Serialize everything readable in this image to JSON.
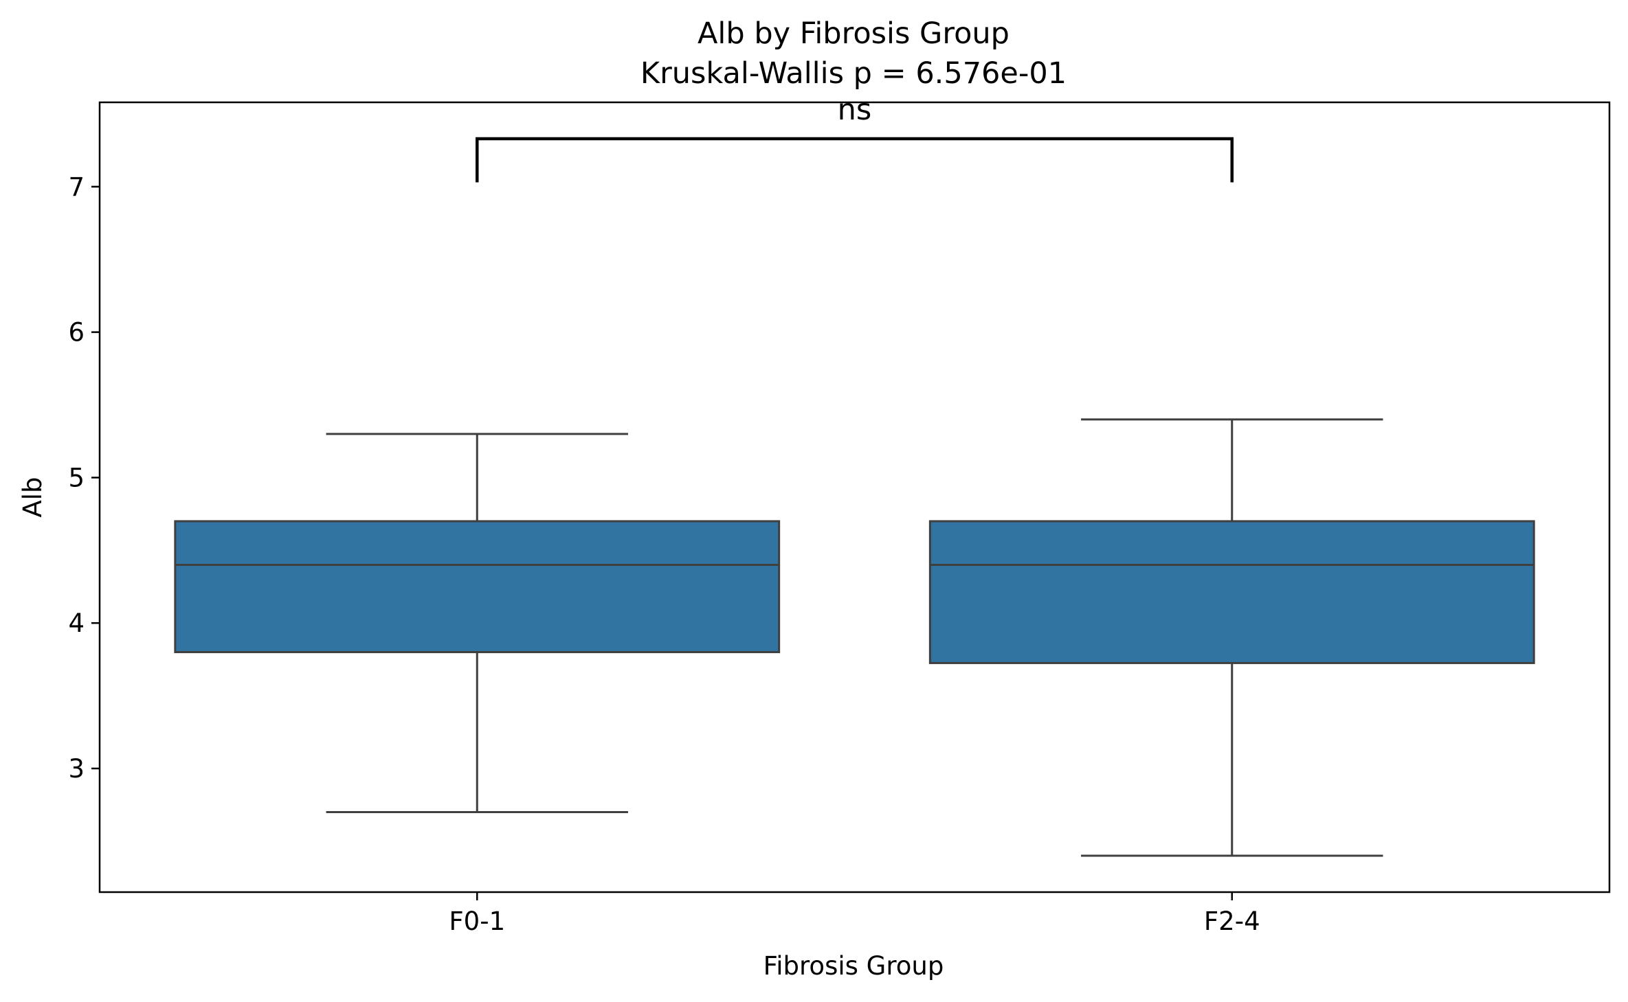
{
  "chart_data": {
    "type": "box",
    "title": "Alb by Fibrosis Group",
    "subtitle": "Kruskal-Wallis p = 6.576e-01",
    "xlabel": "Fibrosis Group",
    "ylabel": "Alb",
    "ylim": [
      2.15,
      7.58
    ],
    "yticks": [
      3,
      4,
      5,
      6,
      7
    ],
    "categories": [
      "F0-1",
      "F2-4"
    ],
    "boxes": [
      {
        "category": "F0-1",
        "whisker_low": 2.7,
        "q1": 3.8,
        "median": 4.4,
        "q3": 4.7,
        "whisker_high": 5.3
      },
      {
        "category": "F2-4",
        "whisker_low": 2.4,
        "q1": 3.725,
        "median": 4.4,
        "q3": 4.7,
        "whisker_high": 5.4
      }
    ],
    "significance": {
      "label": "ns",
      "from": "F0-1",
      "to": "F2-4",
      "leg_bottom": 7.03,
      "bar_y": 7.33
    },
    "grid": false,
    "colors": {
      "box_fill": "#3274a1",
      "box_edge": "#3f3f3f",
      "bracket": "#000000"
    }
  }
}
